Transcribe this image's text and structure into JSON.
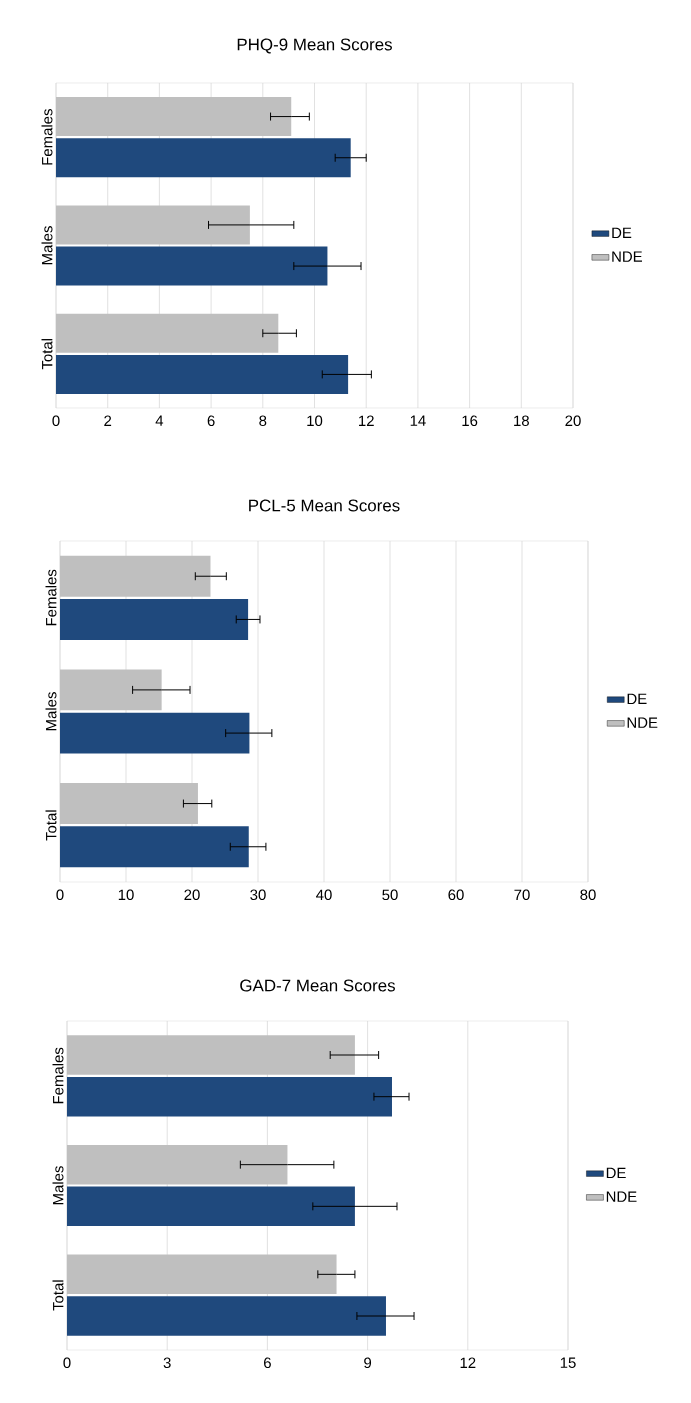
{
  "chart_data": [
    {
      "type": "bar",
      "orientation": "horizontal",
      "title": "PHQ-9 Mean Scores",
      "categories": [
        "Females",
        "Males",
        "Total"
      ],
      "series": [
        {
          "name": "DE",
          "color": "#1f497d",
          "values": [
            11.4,
            10.5,
            11.3
          ],
          "errors": [
            [
              10.8,
              12.0
            ],
            [
              9.2,
              11.8
            ],
            [
              10.3,
              12.2
            ]
          ]
        },
        {
          "name": "NDE",
          "color": "#bfbfbf",
          "values": [
            9.1,
            7.5,
            8.6
          ],
          "errors": [
            [
              8.3,
              9.8
            ],
            [
              5.9,
              9.2
            ],
            [
              8.0,
              9.3
            ]
          ]
        }
      ],
      "xlim": [
        0,
        20
      ],
      "xticks": [
        0,
        2,
        4,
        6,
        8,
        10,
        12,
        14,
        16,
        18,
        20
      ],
      "grid": "x",
      "legend": "right"
    },
    {
      "type": "bar",
      "orientation": "horizontal",
      "title": "PCL-5 Mean Scores",
      "categories": [
        "Females",
        "Males",
        "Total"
      ],
      "series": [
        {
          "name": "DE",
          "color": "#1f497d",
          "values": [
            28.5,
            28.7,
            28.6
          ],
          "errors": [
            [
              26.7,
              30.3
            ],
            [
              25.1,
              32.1
            ],
            [
              25.8,
              31.2
            ]
          ]
        },
        {
          "name": "NDE",
          "color": "#bfbfbf",
          "values": [
            22.8,
            15.4,
            20.9
          ],
          "errors": [
            [
              20.5,
              25.2
            ],
            [
              11.0,
              19.7
            ],
            [
              18.7,
              23.0
            ]
          ]
        }
      ],
      "xlim": [
        0,
        80
      ],
      "xticks": [
        0,
        10,
        20,
        30,
        40,
        50,
        60,
        70,
        80
      ],
      "grid": "x",
      "legend": "right"
    },
    {
      "type": "bar",
      "orientation": "horizontal",
      "title": "GAD-7 Mean Scores",
      "categories": [
        "Females",
        "Males",
        "Total"
      ],
      "series": [
        {
          "name": "DE",
          "color": "#1f497d",
          "values": [
            9.73,
            8.62,
            9.55
          ],
          "errors": [
            [
              9.19,
              10.24
            ],
            [
              7.36,
              9.88
            ],
            [
              8.68,
              10.39
            ]
          ]
        },
        {
          "name": "NDE",
          "color": "#bfbfbf",
          "values": [
            8.62,
            6.6,
            8.07
          ],
          "errors": [
            [
              7.88,
              9.33
            ],
            [
              5.19,
              7.99
            ],
            [
              7.51,
              8.62
            ]
          ]
        }
      ],
      "xlim": [
        0,
        15
      ],
      "xticks": [
        0,
        3,
        6,
        9,
        12,
        15
      ],
      "grid": "x",
      "legend": "right"
    }
  ]
}
